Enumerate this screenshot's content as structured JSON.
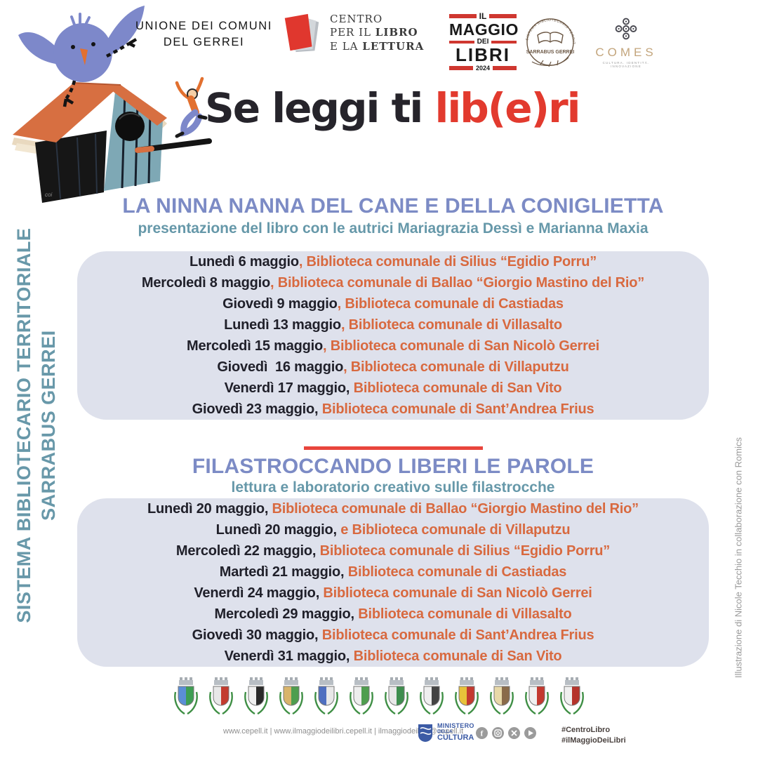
{
  "colors": {
    "heading": "#7c8bc5",
    "subheading": "#6698a9",
    "date": "#20202a",
    "venue": "#d8693f",
    "panel": "#dee1ec",
    "divider": "#e8453c",
    "title-red": "#e23a2e",
    "title-black": "#26242b",
    "rail": "#6898a9",
    "credit": "#9a9a9a",
    "maggio-red": "#cf3730",
    "comes-tan": "#c3a57c",
    "ministero-blue": "#3c5ba5",
    "footer-gray": "#8f8f8f",
    "hashtag": "#4a423f"
  },
  "header": {
    "unione": {
      "line1": "UNIONE DEI COMUNI",
      "line2": "DEL GERREI"
    },
    "centro": {
      "line1": "CENTRO",
      "line2_pre": "PER IL ",
      "line2_bold": "LIBRO",
      "line3_pre": "E LA ",
      "line3_bold": "LETTURA"
    },
    "maggio": {
      "il": "IL",
      "maggio": "MAGGIO",
      "dei": "DEI",
      "libri": "LIBRI",
      "year": "2024"
    },
    "seal": {
      "top": "SISTEMA BIBLIOTECARIO TERRITORIALE",
      "name": "SARRABUS GERREI"
    },
    "comes": {
      "name": "COMES",
      "tagline": "CULTURA. IDENTITÀ. INNOVAZIONE"
    }
  },
  "title": {
    "black": "Se leggi ti ",
    "red": "lib(e)ri"
  },
  "illustration": {
    "signature": "coi"
  },
  "left_rail": {
    "line1": "SISTEMA BIBLIOTECARIO TERRITORIALE",
    "line2": "SARRABUS GERREI"
  },
  "right_rail": {
    "credit": "Illustrazione di Nicole Tecchio in collaborazione con Romics"
  },
  "sections": [
    {
      "heading": "LA NINNA NANNA DEL CANE E DELLA CONIGLIETTA",
      "subheading": "presentazione del libro con le autrici Mariagrazia Dessì e Marianna Maxia",
      "events": [
        {
          "date": "Lunedì 6 maggio",
          "venue": ", Biblioteca comunale di Silius “Egidio Porru”"
        },
        {
          "date": "Mercoledì 8 maggio",
          "venue": ", Biblioteca comunale di Ballao “Giorgio Mastino del Rio”"
        },
        {
          "date": "Giovedì 9 maggio",
          "venue": ", Biblioteca comunale di Castiadas"
        },
        {
          "date": "Lunedì 13 maggio",
          "venue": ", Biblioteca comunale di Villasalto"
        },
        {
          "date": "Mercoledì 15 maggio",
          "venue": ", Biblioteca comunale di San Nicolò Gerrei"
        },
        {
          "date": "Giovedì  16 maggio",
          "venue": ", Biblioteca comunale di Villaputzu"
        },
        {
          "date": "Venerdì 17 maggio,",
          "venue": " Biblioteca comunale di San Vito"
        },
        {
          "date": "Giovedì 23 maggio,",
          "venue": " Biblioteca comunale di Sant’Andrea Frius"
        }
      ]
    },
    {
      "heading": "FILASTROCCANDO LIBERI LE PAROLE",
      "subheading": "lettura e laboratorio creativo sulle filastrocche",
      "events": [
        {
          "date": "Lunedì 20 maggio,",
          "venue": " Biblioteca comunale di Ballao “Giorgio Mastino del Rio”"
        },
        {
          "date": "Lunedì 20 maggio,",
          "venue": " e Biblioteca comunale di Villaputzu"
        },
        {
          "date": "Mercoledì 22 maggio,",
          "venue": " Biblioteca comunale di Silius “Egidio Porru”"
        },
        {
          "date": "Martedì 21 maggio,",
          "venue": " Biblioteca comunale di Castiadas"
        },
        {
          "date": "Venerdì 24 maggio,",
          "venue": " Biblioteca comunale di San Nicolò Gerrei"
        },
        {
          "date": "Mercoledì 29 maggio,",
          "venue": " Biblioteca comunale di Villasalto"
        },
        {
          "date": "Giovedì 30 maggio,",
          "venue": " Biblioteca comunale di Sant’Andrea Frius"
        },
        {
          "date": "Venerdì 31 maggio,",
          "venue": " Biblioteca comunale di San Vito"
        }
      ]
    }
  ],
  "crests": [
    {
      "left": "#5b8ed6",
      "right": "#3e9e53"
    },
    {
      "left": "#e8e8e8",
      "right": "#c33b2f"
    },
    {
      "left": "#f0f0f0",
      "right": "#2a2a2a"
    },
    {
      "left": "#d9b46a",
      "right": "#4f9e4f"
    },
    {
      "left": "#4f6fc0",
      "right": "#e8e8e8"
    },
    {
      "left": "#eeeeee",
      "right": "#4f9e4f"
    },
    {
      "left": "#e8e8e8",
      "right": "#3e8e4e"
    },
    {
      "left": "#efefef",
      "right": "#444444"
    },
    {
      "left": "#e8c23a",
      "right": "#c3392f"
    },
    {
      "left": "#e8d9a8",
      "right": "#8a6b4a"
    },
    {
      "left": "#f0f0f0",
      "right": "#c3392f"
    },
    {
      "left": "#f0f0f0",
      "right": "#b5342c"
    }
  ],
  "footer": {
    "links": "www.cepell.it | www.ilmaggiodeilibri.cepell.it | ilmaggiodeilibri@cepell.it",
    "ministero": {
      "line1": "MINISTERO",
      "line2": "DELLA",
      "line3": "CULTURA"
    },
    "social": [
      "facebook",
      "instagram",
      "x",
      "youtube"
    ],
    "hashtags": {
      "line1": "#CentroLibro",
      "line2": "#ilMaggioDeiLibri"
    }
  }
}
